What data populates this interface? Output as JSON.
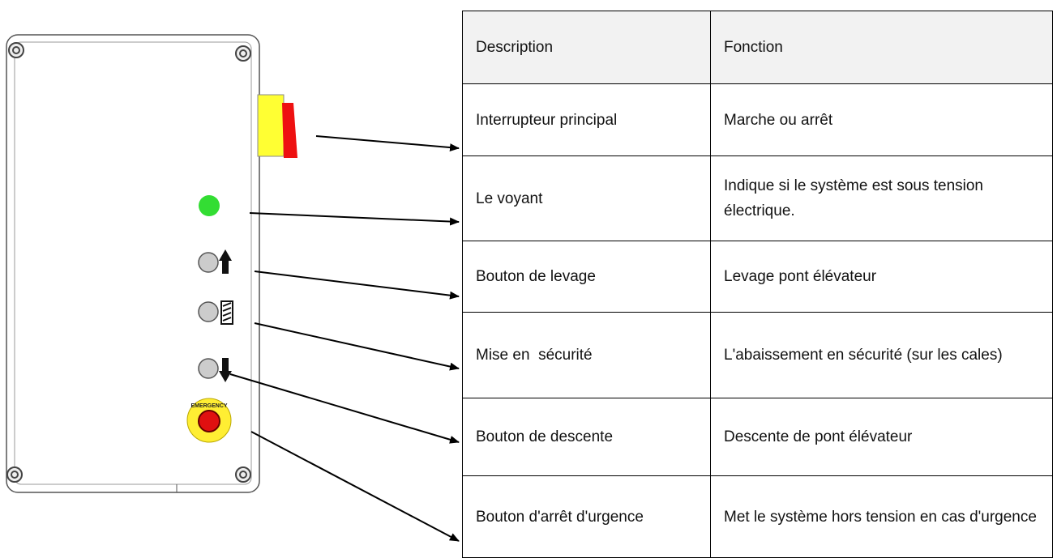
{
  "panel": {
    "emergency_label": "EMERGENCY"
  },
  "table": {
    "header": [
      "Description",
      "Fonction"
    ],
    "rows": [
      [
        "Interrupteur principal",
        "Marche ou arrêt"
      ],
      [
        "Le voyant",
        "Indique si le système est sous tension électrique."
      ],
      [
        "Bouton de levage",
        "Levage pont élévateur"
      ],
      [
        "Mise en  sécurité",
        "L'abaissement en sécurité (sur les cales)"
      ],
      [
        "Bouton de descente",
        "Descente de pont élévateur"
      ],
      [
        "Bouton d'arrêt d'urgence",
        "Met le système hors tension en cas d'urgence"
      ]
    ]
  }
}
